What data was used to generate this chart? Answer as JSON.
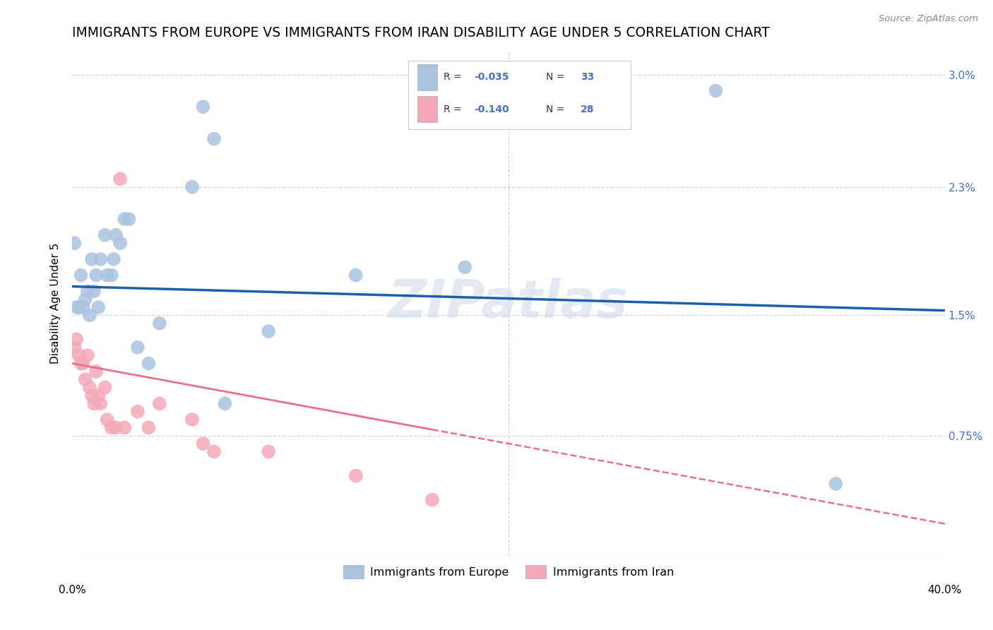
{
  "title": "IMMIGRANTS FROM EUROPE VS IMMIGRANTS FROM IRAN DISABILITY AGE UNDER 5 CORRELATION CHART",
  "source": "Source: ZipAtlas.com",
  "ylabel": "Disability Age Under 5",
  "yticks": [
    0.0,
    0.0075,
    0.015,
    0.023,
    0.03
  ],
  "ytick_labels": [
    "",
    "0.75%",
    "1.5%",
    "2.3%",
    "3.0%"
  ],
  "xlim": [
    0.0,
    0.4
  ],
  "ylim": [
    0.0,
    0.0315
  ],
  "watermark": "ZIPatlas",
  "europe_R": "-0.035",
  "europe_N": "33",
  "iran_R": "-0.140",
  "iran_N": "28",
  "europe_color": "#aac4e0",
  "iran_color": "#f4a8b8",
  "europe_line_color": "#1a5fa8",
  "iran_line_color": "#e8708a",
  "background_color": "#ffffff",
  "grid_color": "#c8d4e8",
  "title_fontsize": 13.5,
  "axis_label_fontsize": 11,
  "tick_fontsize": 11,
  "legend_europe_label": "Immigrants from Europe",
  "legend_iran_label": "Immigrants from Iran",
  "europe_scatter_x": [
    0.001,
    0.002,
    0.003,
    0.004,
    0.005,
    0.006,
    0.007,
    0.008,
    0.009,
    0.01,
    0.011,
    0.012,
    0.013,
    0.015,
    0.016,
    0.018,
    0.019,
    0.02,
    0.022,
    0.024,
    0.026,
    0.03,
    0.035,
    0.04,
    0.055,
    0.06,
    0.065,
    0.07,
    0.09,
    0.13,
    0.18,
    0.295,
    0.35
  ],
  "europe_scatter_y": [
    0.0195,
    0.0155,
    0.0155,
    0.0175,
    0.0155,
    0.016,
    0.0165,
    0.015,
    0.0185,
    0.0165,
    0.0175,
    0.0155,
    0.0185,
    0.02,
    0.0175,
    0.0175,
    0.0185,
    0.02,
    0.0195,
    0.021,
    0.021,
    0.013,
    0.012,
    0.0145,
    0.023,
    0.028,
    0.026,
    0.0095,
    0.014,
    0.0175,
    0.018,
    0.029,
    0.0045
  ],
  "iran_scatter_x": [
    0.001,
    0.002,
    0.003,
    0.004,
    0.005,
    0.006,
    0.007,
    0.008,
    0.009,
    0.01,
    0.011,
    0.012,
    0.013,
    0.015,
    0.016,
    0.018,
    0.02,
    0.022,
    0.024,
    0.03,
    0.035,
    0.04,
    0.055,
    0.06,
    0.065,
    0.09,
    0.13,
    0.165
  ],
  "iran_scatter_y": [
    0.013,
    0.0135,
    0.0125,
    0.012,
    0.012,
    0.011,
    0.0125,
    0.0105,
    0.01,
    0.0095,
    0.0115,
    0.01,
    0.0095,
    0.0105,
    0.0085,
    0.008,
    0.008,
    0.0235,
    0.008,
    0.009,
    0.008,
    0.0095,
    0.0085,
    0.007,
    0.0065,
    0.0065,
    0.005,
    0.0035
  ],
  "eu_trend_x": [
    0.0,
    0.4
  ],
  "eu_trend_y": [
    0.0168,
    0.0153
  ],
  "ir_trend_x": [
    0.0,
    0.4
  ],
  "ir_trend_y": [
    0.012,
    0.002
  ]
}
